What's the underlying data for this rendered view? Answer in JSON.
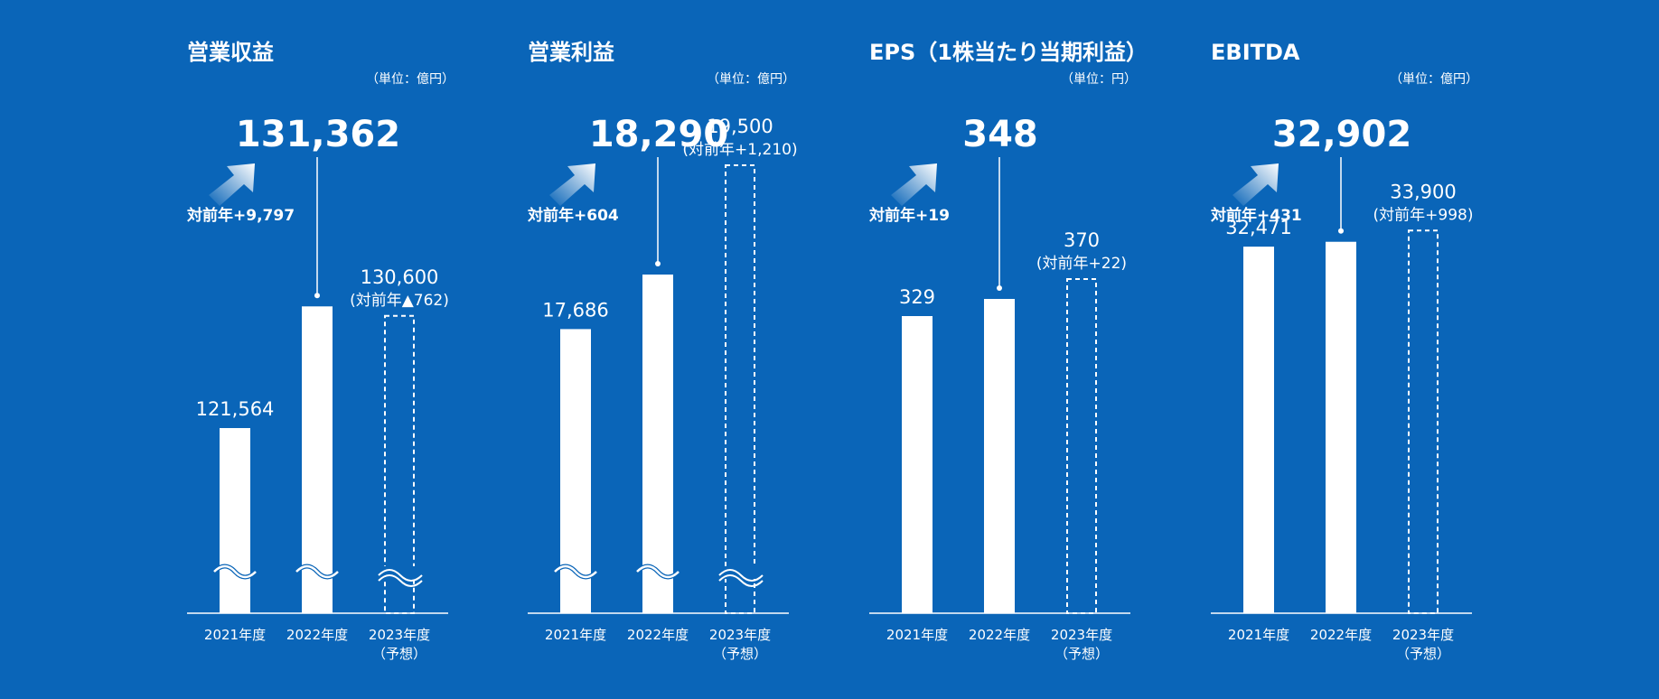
{
  "colors": {
    "background": "#0A65B8",
    "bars": "#FFFFFF",
    "arrow_gradient_end": "#FFFFFF"
  },
  "icons": {
    "growth_arrow": "up-right-arrow-icon",
    "axis_break": "wave-break-icon"
  },
  "chart_data": [
    {
      "type": "bar",
      "title": "営業収益",
      "unit": "（単位：億円）",
      "categories": [
        "2021年度",
        "2022年度",
        [
          "2023年度",
          "（予想）"
        ]
      ],
      "values": [
        121564,
        131362,
        130600
      ],
      "value_labels": [
        "121,564",
        "131,362",
        "130,600"
      ],
      "forecast": [
        false,
        false,
        true
      ],
      "forecast_note": "(対前年▲762)",
      "yoy_label": "対前年+9,797",
      "axis_break": true
    },
    {
      "type": "bar",
      "title": "営業利益",
      "unit": "（単位：億円）",
      "categories": [
        "2021年度",
        "2022年度",
        [
          "2023年度",
          "（予想）"
        ]
      ],
      "values": [
        17686,
        18290,
        19500
      ],
      "value_labels": [
        "17,686",
        "18,290",
        "19,500"
      ],
      "forecast": [
        false,
        false,
        true
      ],
      "forecast_note": "(対前年+1,210)",
      "yoy_label": "対前年+604",
      "axis_break": true
    },
    {
      "type": "bar",
      "title": "EPS（1株当たり当期利益）",
      "unit": "（単位：円）",
      "categories": [
        "2021年度",
        "2022年度",
        [
          "2023年度",
          "（予想）"
        ]
      ],
      "values": [
        329,
        348,
        370
      ],
      "value_labels": [
        "329",
        "348",
        "370"
      ],
      "forecast": [
        false,
        false,
        true
      ],
      "forecast_note": "(対前年+22)",
      "yoy_label": "対前年+19",
      "axis_break": false
    },
    {
      "type": "bar",
      "title": "EBITDA",
      "unit": "（単位：億円）",
      "categories": [
        "2021年度",
        "2022年度",
        [
          "2023年度",
          "（予想）"
        ]
      ],
      "values": [
        32471,
        32902,
        33900
      ],
      "value_labels": [
        "32,471",
        "32,902",
        "33,900"
      ],
      "forecast": [
        false,
        false,
        true
      ],
      "forecast_note": "(対前年+998)",
      "yoy_label": "対前年+431",
      "axis_break": false
    }
  ]
}
